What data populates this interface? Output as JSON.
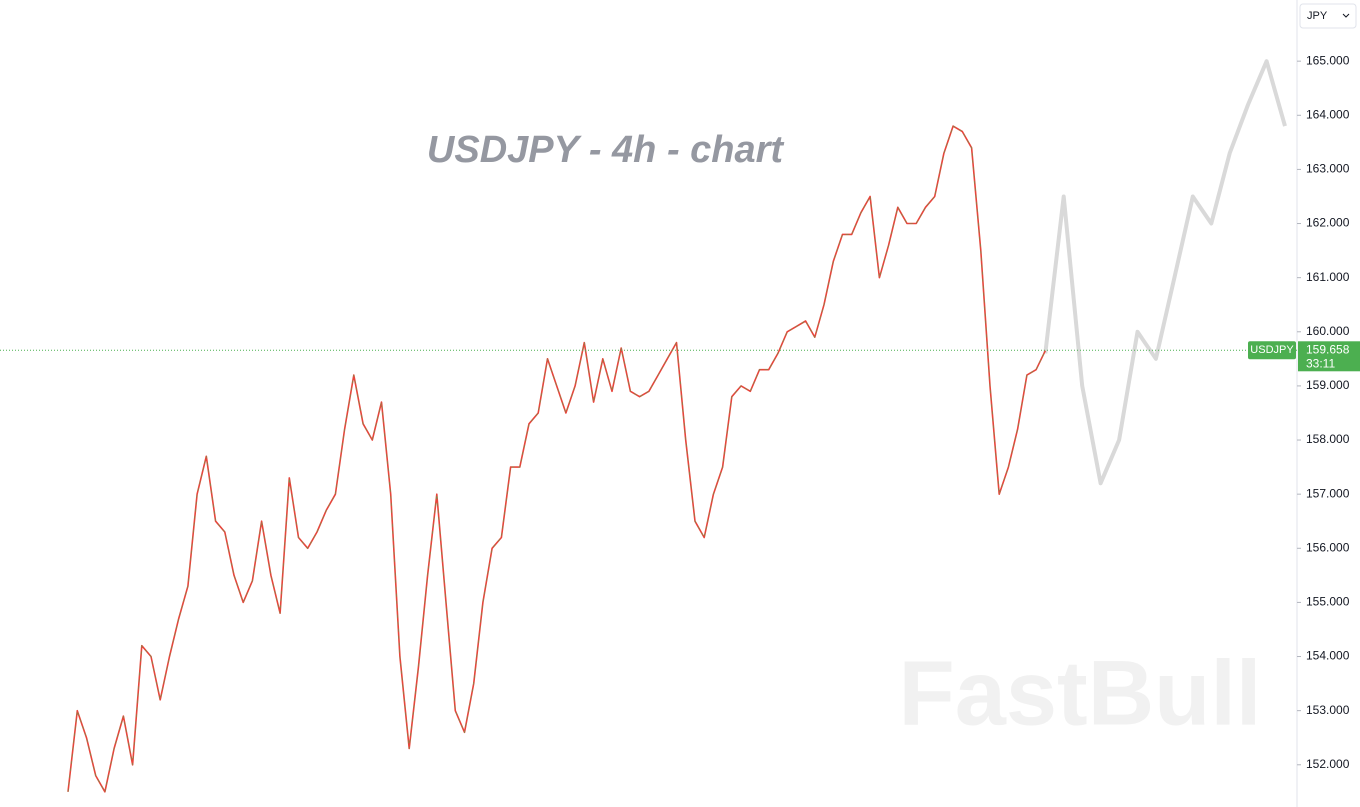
{
  "chart_data": {
    "type": "line",
    "title": "USDJPY - 4h - chart",
    "watermark": "FastBull",
    "symbol": "USDJPY",
    "currency": "JPY",
    "countdown": "33:11",
    "last_price": 159.658,
    "series": [
      {
        "color": "#e8453c",
        "values": [
          151.5,
          153.0,
          152.5,
          151.8,
          151.5,
          152.3,
          152.9,
          152.0,
          154.2,
          154.0,
          153.2,
          154.0,
          154.7,
          155.3,
          157.0,
          157.7,
          156.5,
          156.3,
          155.5,
          155.0,
          155.4,
          156.5,
          155.5,
          154.8,
          157.3,
          156.2,
          156.0,
          156.3,
          156.7,
          157.0,
          158.2,
          159.2,
          158.3,
          158.0,
          158.7,
          157.0,
          154.0,
          152.3,
          153.8,
          155.5,
          157.0,
          155.0,
          153.0,
          152.6,
          153.5,
          155.0,
          156.0,
          156.2,
          157.5,
          157.5,
          158.3,
          158.5,
          159.5,
          159.0,
          158.5,
          159.0,
          159.8,
          158.7,
          159.5,
          158.9,
          159.7,
          158.9,
          158.8,
          158.9,
          159.2,
          159.5,
          159.8,
          158.0,
          156.5,
          156.2,
          157.0,
          157.5,
          158.8,
          159.0,
          158.9,
          159.3,
          159.3,
          159.6,
          160.0,
          160.1,
          160.2,
          159.9,
          160.5,
          161.3,
          161.8,
          161.8,
          162.2,
          162.5,
          161.0,
          161.6,
          162.3,
          162.0,
          162.0,
          162.3,
          162.5,
          163.3,
          163.8,
          163.7,
          163.4,
          161.5,
          159.0,
          157.0,
          157.5,
          158.2,
          159.2,
          159.3,
          159.65
        ]
      },
      {
        "color": "#d9d9d9",
        "x": [
          106,
          108,
          110,
          112,
          114,
          116,
          118,
          120,
          122,
          124,
          126,
          128,
          130,
          132
        ],
        "values": [
          159.6,
          162.5,
          159.0,
          157.2,
          158.0,
          160.0,
          159.5,
          161.0,
          162.5,
          162.0,
          163.3,
          164.2,
          165.0,
          163.8
        ]
      }
    ],
    "xlim": [
      -7.38,
      133.3
    ],
    "ylim": [
      151.22,
      166.13
    ],
    "yticks": [
      {
        "value": 152,
        "label": "152.000"
      },
      {
        "value": 153,
        "label": "153.000"
      },
      {
        "value": 154,
        "label": "154.000"
      },
      {
        "value": 155,
        "label": "155.000"
      },
      {
        "value": 156,
        "label": "156.000"
      },
      {
        "value": 157,
        "label": "157.000"
      },
      {
        "value": 158,
        "label": "158.000"
      },
      {
        "value": 159,
        "label": "159.000"
      },
      {
        "value": 160,
        "label": "160.000"
      },
      {
        "value": 161,
        "label": "161.000"
      },
      {
        "value": 162,
        "label": "162.000"
      },
      {
        "value": 163,
        "label": "163.000"
      },
      {
        "value": 164,
        "label": "164.000"
      },
      {
        "value": 165,
        "label": "165.000"
      }
    ]
  }
}
